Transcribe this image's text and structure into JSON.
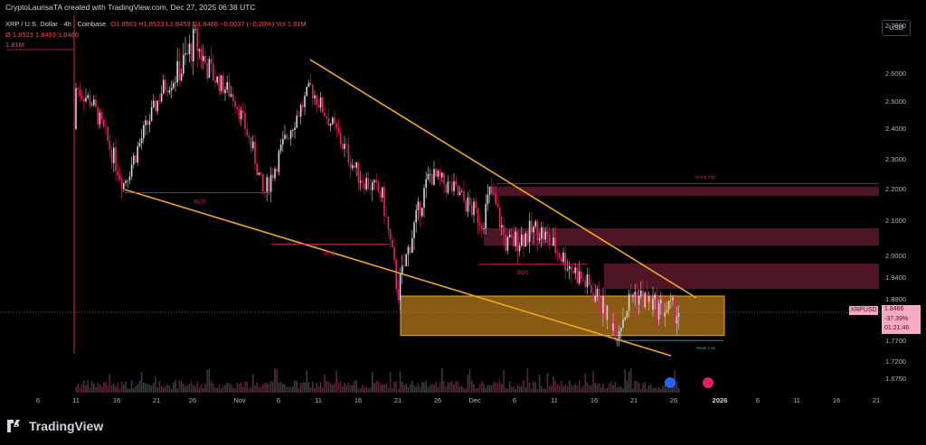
{
  "header": {
    "text": "CryptoLaurisaTA created with TradingView.com, Dec 27, 2025 06:38 UTC"
  },
  "legend": {
    "symbol": "XRP / U.S. Dollar · 4h · Coinbase",
    "ohlc": "O1.8503 H1.8523 L1.8453 C1.8466 −0.0037 (−0.20%) Vol 1.81M",
    "row2": "Ø 1.8523 1.8453 1.8466",
    "row3": "1.81M"
  },
  "currency_label": "USD",
  "price_axis": [
    "2.7000",
    "2.6000",
    "2.5000",
    "2.4000",
    "2.3000",
    "2.2000",
    "2.1000",
    "2.0000",
    "1.9400",
    "1.8800",
    "1.7700",
    "1.7200",
    "1.6750"
  ],
  "time_axis": [
    {
      "label": "6",
      "bold": false
    },
    {
      "label": "11",
      "bold": false
    },
    {
      "label": "16",
      "bold": false
    },
    {
      "label": "21",
      "bold": false
    },
    {
      "label": "26",
      "bold": false
    },
    {
      "label": "Nov",
      "bold": false
    },
    {
      "label": "6",
      "bold": false
    },
    {
      "label": "11",
      "bold": false
    },
    {
      "label": "16",
      "bold": false
    },
    {
      "label": "21",
      "bold": false
    },
    {
      "label": "26",
      "bold": false
    },
    {
      "label": "Dec",
      "bold": false
    },
    {
      "label": "6",
      "bold": false
    },
    {
      "label": "11",
      "bold": false
    },
    {
      "label": "16",
      "bold": false
    },
    {
      "label": "21",
      "bold": false
    },
    {
      "label": "26",
      "bold": false
    },
    {
      "label": "2026",
      "bold": true
    },
    {
      "label": "6",
      "bold": false
    },
    {
      "label": "11",
      "bold": false
    },
    {
      "label": "16",
      "bold": false
    },
    {
      "label": "21",
      "bold": false
    }
  ],
  "current_price": {
    "symbol": "XRPUSD",
    "price": "1.8466",
    "change": "-37.39%",
    "countdown": "01:21:46"
  },
  "annotations": {
    "bos_labels": [
      "BOS",
      "BOS",
      "BOS"
    ],
    "strong_high": "Strong High",
    "weak_low": "Weak Low"
  },
  "colors": {
    "up": "#d1d4dc",
    "down": "#e91e63",
    "wedge": "#f5a623",
    "zone_red": "#5c1a2a",
    "zone_orange": "#f5a623",
    "tag": "#f7a9c4"
  },
  "brand": {
    "name": "TradingView"
  },
  "chart_data": {
    "type": "candlestick",
    "symbol": "XRP / U.S. Dollar",
    "timeframe": "4h",
    "exchange": "Coinbase",
    "ylim": [
      1.66,
      2.78
    ],
    "close_path": [
      {
        "date": "Oct 10",
        "close": 2.4
      },
      {
        "date": "Oct 11",
        "close": 2.55
      },
      {
        "date": "Oct 13",
        "close": 2.5
      },
      {
        "date": "Oct 17",
        "close": 2.22
      },
      {
        "date": "Oct 19",
        "close": 2.35
      },
      {
        "date": "Oct 22",
        "close": 2.55
      },
      {
        "date": "Oct 24",
        "close": 2.6
      },
      {
        "date": "Oct 26",
        "close": 2.67
      },
      {
        "date": "Oct 28",
        "close": 2.6
      },
      {
        "date": "Oct 31",
        "close": 2.52
      },
      {
        "date": "Nov 3",
        "close": 2.3
      },
      {
        "date": "Nov 4",
        "close": 2.18
      },
      {
        "date": "Nov 7",
        "close": 2.38
      },
      {
        "date": "Nov 10",
        "close": 2.55
      },
      {
        "date": "Nov 13",
        "close": 2.4
      },
      {
        "date": "Nov 16",
        "close": 2.25
      },
      {
        "date": "Nov 19",
        "close": 2.18
      },
      {
        "date": "Nov 21",
        "close": 1.9
      },
      {
        "date": "Nov 23",
        "close": 2.08
      },
      {
        "date": "Nov 25",
        "close": 2.25
      },
      {
        "date": "Nov 28",
        "close": 2.2
      },
      {
        "date": "Dec 2",
        "close": 2.1
      },
      {
        "date": "Dec 3",
        "close": 2.2
      },
      {
        "date": "Dec 5",
        "close": 2.03
      },
      {
        "date": "Dec 9",
        "close": 2.08
      },
      {
        "date": "Dec 12",
        "close": 2.0
      },
      {
        "date": "Dec 16",
        "close": 1.9
      },
      {
        "date": "Dec 19",
        "close": 1.8
      },
      {
        "date": "Dec 21",
        "close": 1.9
      },
      {
        "date": "Dec 24",
        "close": 1.86
      },
      {
        "date": "Dec 27",
        "close": 1.8466
      }
    ],
    "zones": [
      {
        "type": "supply",
        "from": 2.21,
        "to": 2.18
      },
      {
        "type": "supply",
        "from": 2.08,
        "to": 2.03
      },
      {
        "type": "supply",
        "from": 1.98,
        "to": 1.91
      },
      {
        "type": "demand",
        "from": 1.89,
        "to": 1.785
      }
    ]
  }
}
